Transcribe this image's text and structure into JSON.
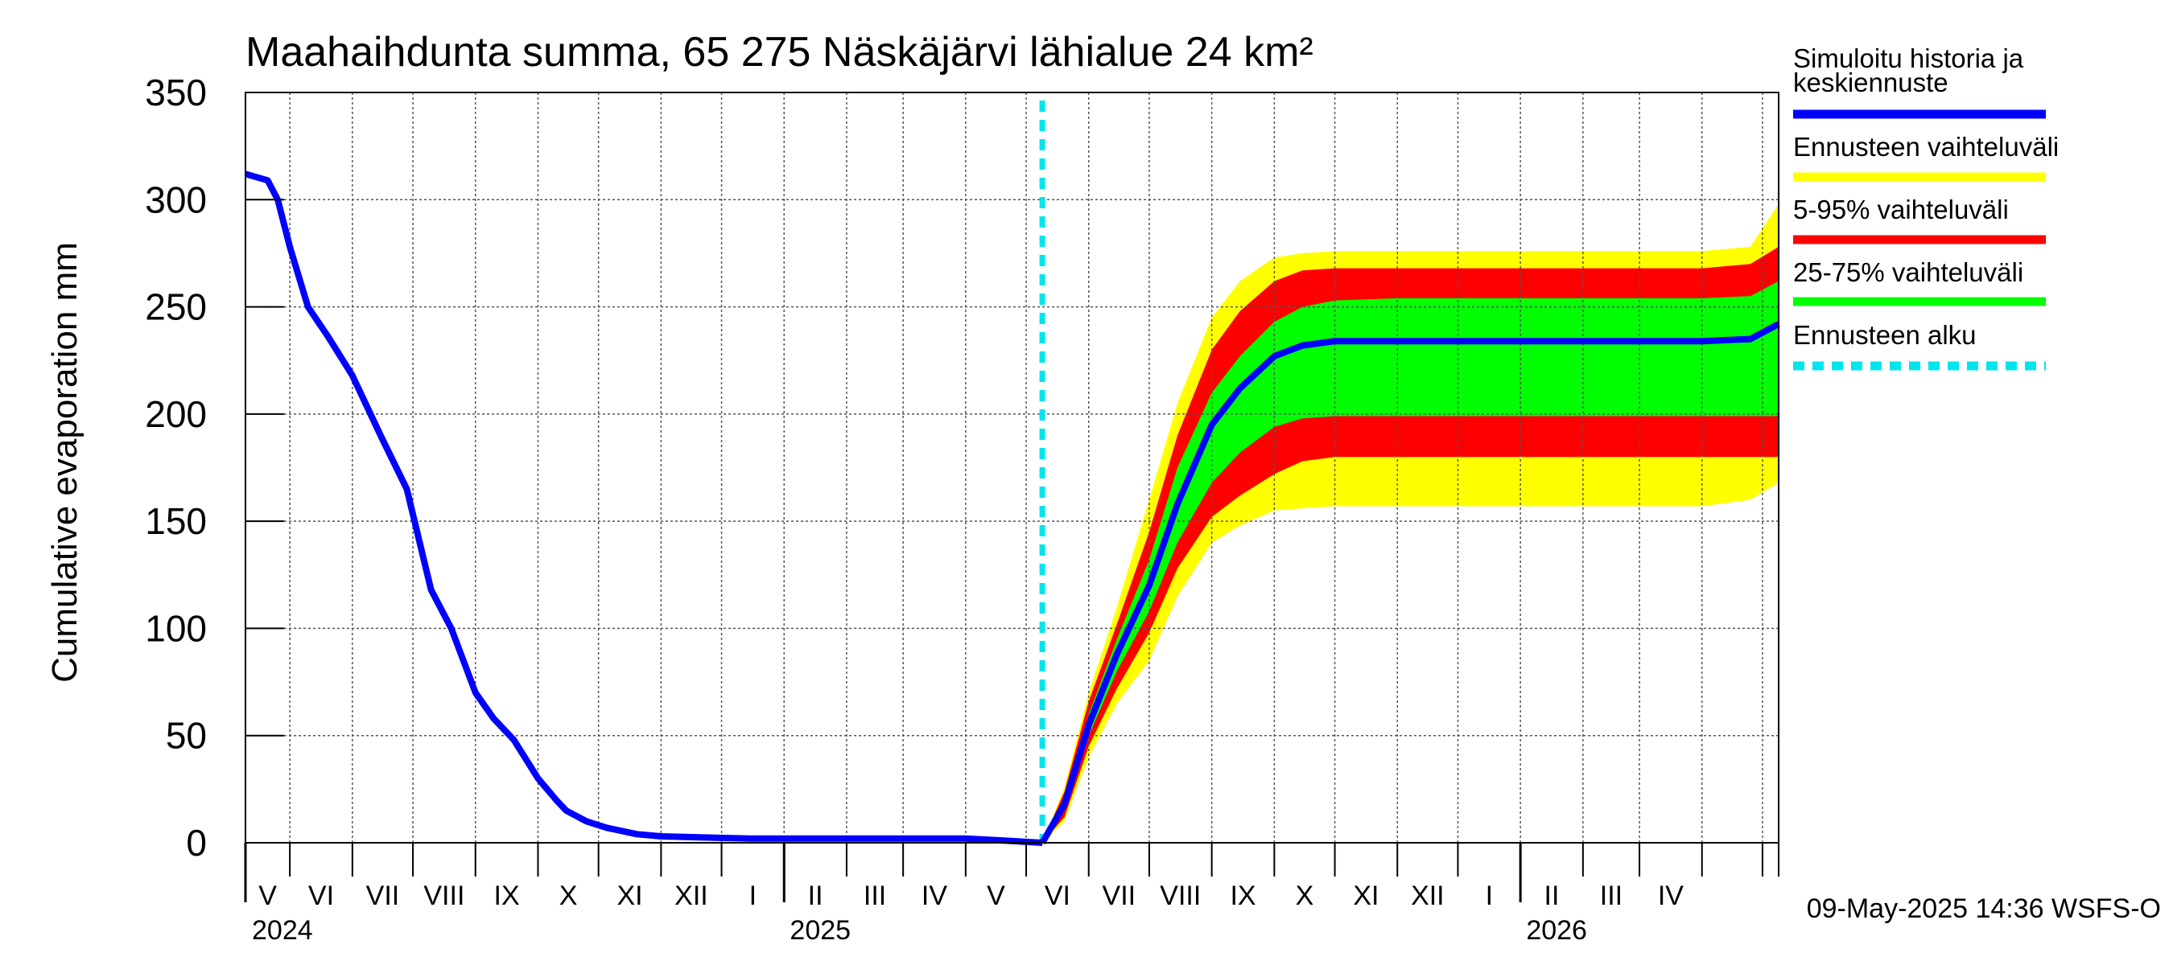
{
  "chart_data": {
    "type": "area",
    "title": "Maahaihdunta summa, 65 275 Näskäjärvi lähialue 24 km²",
    "ylabel": "Cumulative evaporation   mm",
    "xlabel": "",
    "ylim": [
      0,
      350
    ],
    "y_ticks": [
      "0",
      "50",
      "100",
      "150",
      "200",
      "250",
      "300",
      "350"
    ],
    "x_range": [
      "2024-04-09",
      "2026-05-09"
    ],
    "grid": true,
    "legend_position": "right",
    "month_labels": [
      "V",
      "VI",
      "VII",
      "VIII",
      "IX",
      "X",
      "XI",
      "XII",
      "I",
      "II",
      "III",
      "IV",
      "V",
      "VI",
      "VII",
      "VIII",
      "IX",
      "X",
      "XI",
      "XII",
      "I",
      "II",
      "III",
      "IV"
    ],
    "year_labels": [
      "2024",
      "2025",
      "2026"
    ],
    "forecast_start": "2025-05-09",
    "timestamp": "09-May-2025 14:36 WSFS-O",
    "colors": {
      "median": "#0000ff",
      "band_total": "#ffff00",
      "band_5_95": "#ff0000",
      "band_25_75": "#00ff00",
      "forecast_start": "#00e5ee"
    },
    "legend": [
      {
        "label": "Simuloitu historia ja keskiennuste",
        "color": "#0000ff"
      },
      {
        "label": "Ennusteen vaihteluväli",
        "color": "#ffff00"
      },
      {
        "label": "5-95% vaihteluväli",
        "color": "#ff0000"
      },
      {
        "label": "25-75% vaihteluväli",
        "color": "#00ff00"
      },
      {
        "label": "Ennusteen alku",
        "color": "#00e5ee"
      }
    ],
    "history": {
      "x": [
        "2024-04-09",
        "2024-04-20",
        "2024-04-25",
        "2024-05-01",
        "2024-05-10",
        "2024-05-20",
        "2024-06-01",
        "2024-06-15",
        "2024-06-28",
        "2024-07-10",
        "2024-07-20",
        "2024-08-01",
        "2024-08-10",
        "2024-08-20",
        "2024-09-01",
        "2024-09-10",
        "2024-09-15",
        "2024-09-25",
        "2024-10-05",
        "2024-10-20",
        "2024-11-01",
        "2024-11-20",
        "2024-12-15",
        "2025-02-01",
        "2025-04-01",
        "2025-04-20",
        "2025-05-09"
      ],
      "y": [
        312,
        309,
        300,
        278,
        250,
        236,
        218,
        190,
        165,
        118,
        100,
        70,
        58,
        48,
        30,
        20,
        15,
        10,
        7,
        4,
        3,
        2.5,
        2,
        2,
        2,
        1,
        0
      ]
    },
    "forecast": {
      "x": [
        "2025-05-09",
        "2025-05-20",
        "2025-06-01",
        "2025-06-15",
        "2025-07-01",
        "2025-07-15",
        "2025-08-01",
        "2025-08-15",
        "2025-09-01",
        "2025-09-15",
        "2025-10-01",
        "2025-11-01",
        "2026-01-01",
        "2026-04-01",
        "2026-04-25",
        "2026-05-09"
      ],
      "median": [
        0,
        18,
        55,
        88,
        120,
        158,
        195,
        212,
        227,
        232,
        234,
        234,
        234,
        234,
        235,
        242
      ],
      "p25": [
        0,
        16,
        50,
        80,
        108,
        140,
        168,
        182,
        194,
        198,
        199,
        199,
        199,
        199,
        199,
        199
      ],
      "p75": [
        0,
        20,
        60,
        95,
        132,
        175,
        210,
        227,
        243,
        250,
        253,
        254,
        254,
        254,
        255,
        262
      ],
      "p5": [
        0,
        12,
        45,
        72,
        98,
        128,
        152,
        162,
        172,
        178,
        180,
        180,
        180,
        180,
        180,
        180
      ],
      "p95": [
        0,
        24,
        66,
        102,
        145,
        190,
        230,
        248,
        262,
        267,
        268,
        268,
        268,
        268,
        270,
        278
      ],
      "min": [
        0,
        10,
        40,
        65,
        85,
        115,
        140,
        148,
        155,
        156,
        157,
        157,
        157,
        157,
        160,
        168
      ],
      "max": [
        0,
        26,
        70,
        110,
        160,
        205,
        245,
        262,
        273,
        275,
        276,
        276,
        276,
        276,
        278,
        298
      ]
    }
  }
}
